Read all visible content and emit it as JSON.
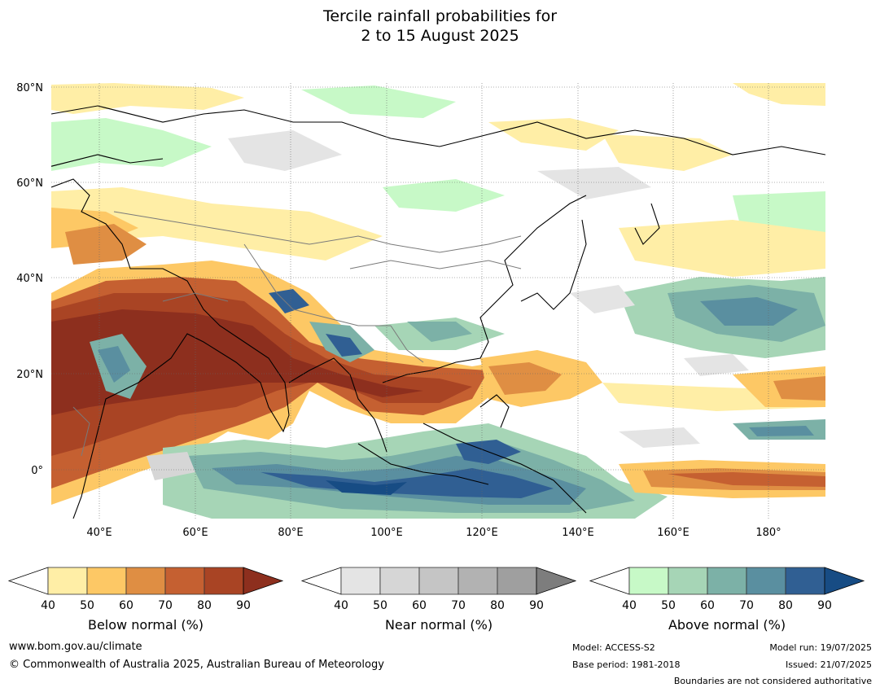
{
  "title": {
    "line1": "Tercile rainfall probabilities for",
    "line2": "2 to 15 August 2025"
  },
  "map": {
    "lat_labels": [
      "80°N",
      "60°N",
      "40°N",
      "20°N",
      "0°"
    ],
    "lon_labels": [
      "40°E",
      "60°E",
      "80°E",
      "100°E",
      "120°E",
      "140°E",
      "160°E",
      "180°"
    ],
    "extent": {
      "lon": [
        30,
        192
      ],
      "lat": [
        -10,
        81
      ]
    }
  },
  "colorbars": {
    "ticks": [
      "40",
      "50",
      "60",
      "70",
      "80",
      "90"
    ],
    "below": {
      "label": "Below normal (%)",
      "colors": [
        "#ffeea6",
        "#fdc865",
        "#df8e43",
        "#c56031",
        "#a94424",
        "#8d2f1e"
      ]
    },
    "near": {
      "label": "Near normal (%)",
      "colors": [
        "#e4e4e4",
        "#d6d6d6",
        "#c5c5c5",
        "#b2b2b2",
        "#9f9f9f",
        "#7d7d7d"
      ]
    },
    "above": {
      "label": "Above normal (%)",
      "colors": [
        "#c7f9c7",
        "#a6d5b6",
        "#7cb1a7",
        "#5a8fa0",
        "#305f93",
        "#174c84"
      ]
    }
  },
  "footer": {
    "url": "www.bom.gov.au/climate",
    "copyright": "© Commonwealth of Australia 2025, Australian Bureau of Meteorology",
    "model": "Model: ACCESS-S2",
    "base_period": "Base period: 1981-2018",
    "model_run": "Model run: 19/07/2025",
    "issued": "Issued: 21/07/2025",
    "boundaries": "Boundaries are not considered authoritative"
  }
}
